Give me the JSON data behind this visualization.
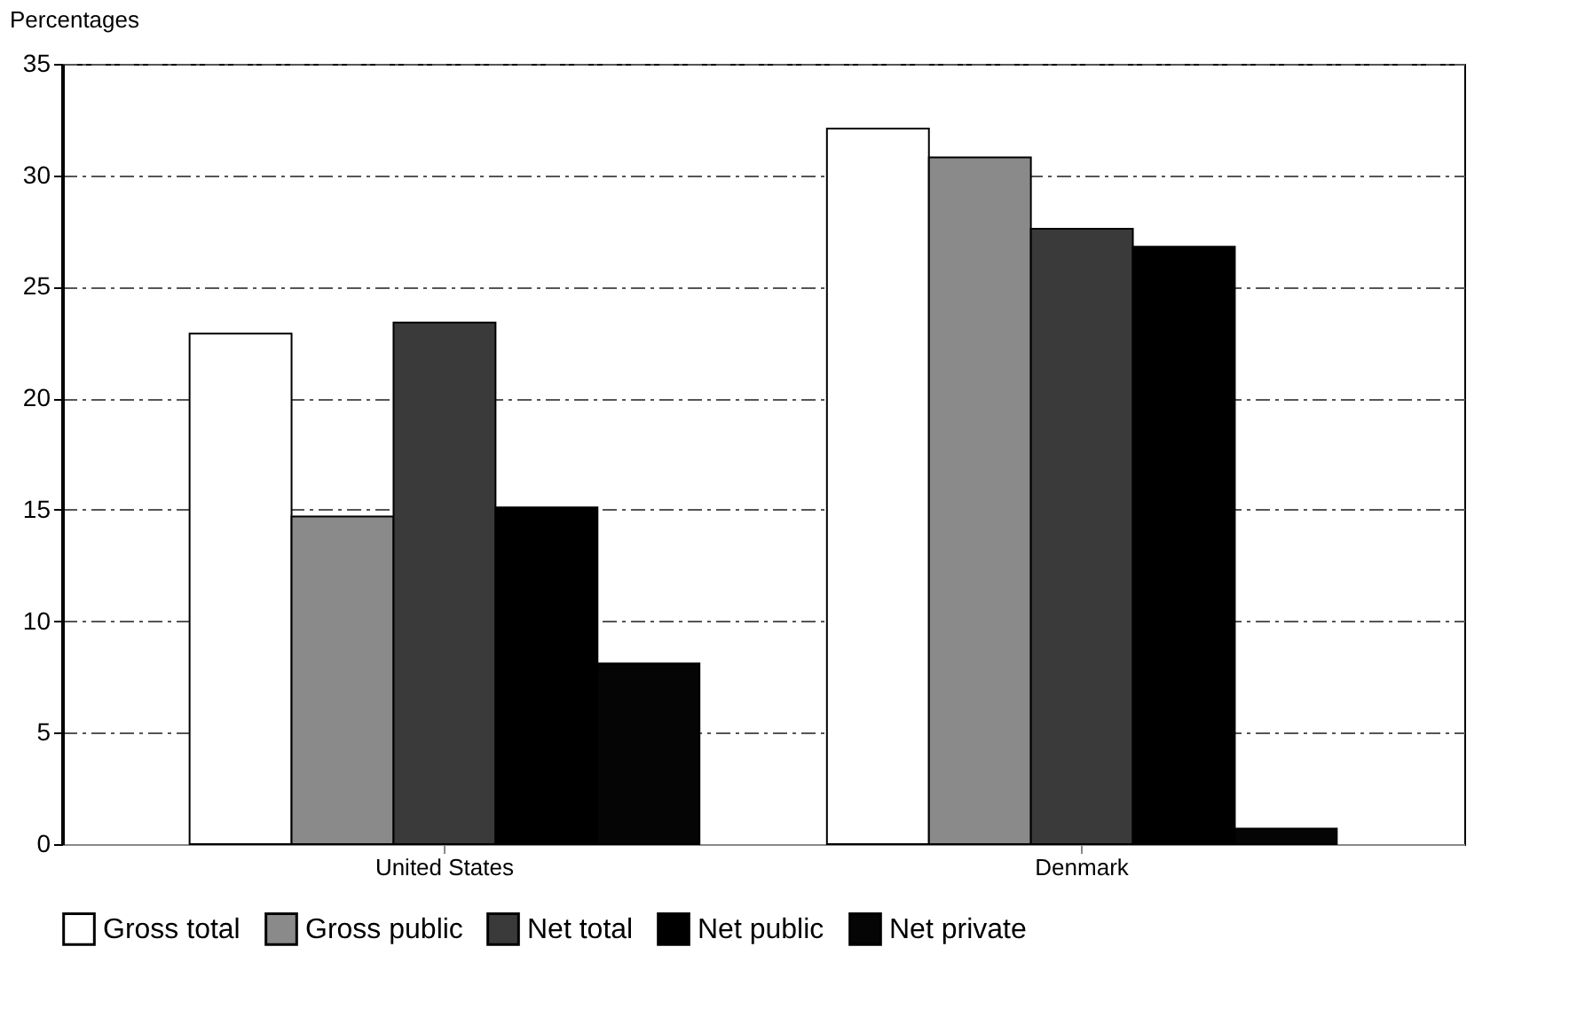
{
  "chart_data": {
    "type": "bar",
    "ylabel": "Percentages",
    "categories": [
      "United States",
      "Denmark"
    ],
    "series": [
      {
        "name": "Gross total",
        "color": "#ffffff",
        "values": [
          22.9,
          32.1
        ]
      },
      {
        "name": "Gross public",
        "color": "#8a8a8a",
        "values": [
          14.7,
          30.8
        ]
      },
      {
        "name": "Net total",
        "color": "#3a3a3a",
        "values": [
          23.4,
          27.6
        ]
      },
      {
        "name": "Net public",
        "color": "#000000",
        "values": [
          15.1,
          26.8
        ]
      },
      {
        "name": "Net private",
        "color": "#050505",
        "values": [
          8.1,
          0.7
        ]
      }
    ],
    "ylim": [
      0,
      35
    ],
    "yticks": [
      0,
      5,
      10,
      15,
      20,
      25,
      30,
      35
    ],
    "grid": "y",
    "legend": "bottom"
  }
}
